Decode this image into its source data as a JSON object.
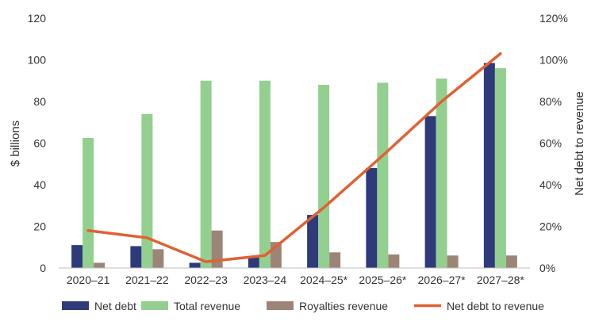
{
  "chart_data": {
    "type": "bar",
    "categories": [
      "2020–21",
      "2021–22",
      "2022–23",
      "2023–24",
      "2024–25*",
      "2025–26*",
      "2026–27*",
      "2027–28*"
    ],
    "series": [
      {
        "name": "Net debt",
        "kind": "bar",
        "axis": "left",
        "color": "#2e3a7a",
        "values": [
          11,
          10.5,
          2.5,
          5,
          25.5,
          48,
          73,
          98.5
        ]
      },
      {
        "name": "Total revenue",
        "kind": "bar",
        "axis": "left",
        "color": "#93cf8f",
        "values": [
          62.5,
          74,
          90,
          90,
          88,
          89,
          91,
          96
        ]
      },
      {
        "name": "Royalties revenue",
        "kind": "bar",
        "axis": "left",
        "color": "#9c8577",
        "values": [
          2.5,
          9,
          18,
          12.5,
          7.5,
          6.5,
          6,
          6
        ]
      },
      {
        "name": "Net debt to revenue",
        "kind": "line",
        "axis": "right",
        "color": "#e06133",
        "values": [
          18,
          14.5,
          3,
          6,
          29,
          54,
          80,
          103
        ]
      }
    ],
    "ylabel": "$ billions",
    "ylabel_right": "Net debt to revenue",
    "ylim": [
      0,
      120
    ],
    "ylim_right": [
      0,
      120
    ],
    "yticks": [
      0,
      20,
      40,
      60,
      80,
      100,
      120
    ],
    "yticks_right": [
      "0%",
      "20%",
      "40%",
      "60%",
      "80%",
      "100%",
      "120%"
    ],
    "legend_position": "bottom",
    "grid": false
  }
}
